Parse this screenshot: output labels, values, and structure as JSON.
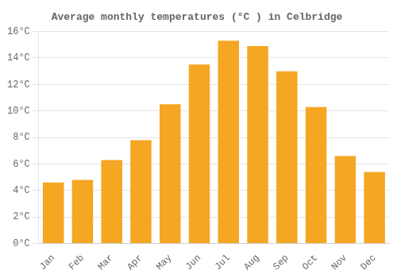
{
  "chart_data": {
    "type": "bar",
    "title": "Average monthly temperatures (°C ) in Celbridge",
    "categories": [
      "Jan",
      "Feb",
      "Mar",
      "Apr",
      "May",
      "Jun",
      "Jul",
      "Aug",
      "Sep",
      "Oct",
      "Nov",
      "Dec"
    ],
    "values": [
      4.6,
      4.8,
      6.3,
      7.8,
      10.5,
      13.5,
      15.3,
      14.9,
      13.0,
      10.3,
      6.6,
      5.4
    ],
    "color": "#F5A623",
    "ylim": [
      0,
      16
    ],
    "yticks": [
      {
        "value": 0,
        "label": "0°C"
      },
      {
        "value": 2,
        "label": "2°C"
      },
      {
        "value": 4,
        "label": "4°C"
      },
      {
        "value": 6,
        "label": "6°C"
      },
      {
        "value": 8,
        "label": "8°C"
      },
      {
        "value": 10,
        "label": "10°C"
      },
      {
        "value": 12,
        "label": "12°C"
      },
      {
        "value": 14,
        "label": "14°C"
      },
      {
        "value": 16,
        "label": "16°C"
      }
    ],
    "grid": true
  }
}
